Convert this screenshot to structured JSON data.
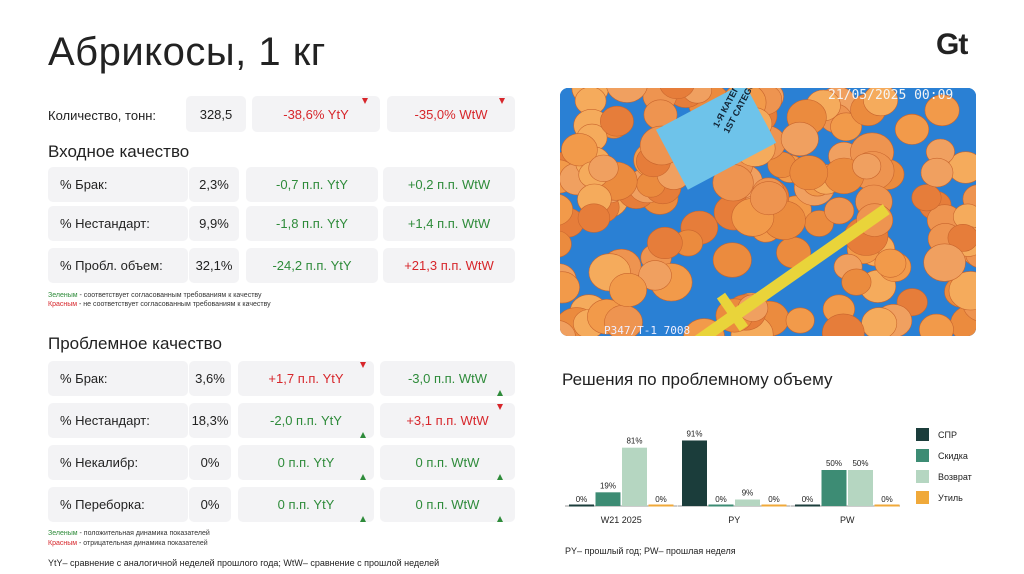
{
  "title": "Абрикосы, 1 кг",
  "logo": "Gt",
  "quantity": {
    "label": "Количество, тонн:",
    "value": "328,5",
    "yty": "-38,6% YtY",
    "wtw": "-35,0% WtW"
  },
  "incoming": {
    "title": "Входное качество",
    "rows": [
      {
        "label": "% Брак:",
        "value": "2,3%",
        "yty": "-0,7 п.п. YtY",
        "wtw": "+0,2 п.п. WtW"
      },
      {
        "label": "% Нестандарт:",
        "value": "9,9%",
        "yty": "-1,8 п.п. YtY",
        "wtw": "+1,4 п.п. WtW"
      },
      {
        "label": "% Пробл. объем:",
        "value": "32,1%",
        "yty": "-24,2 п.п. YtY",
        "wtw": "+21,3 п.п. WtW"
      }
    ],
    "note_green_word": "Зеленым",
    "note_green_text": " - соответствует согласованным требованиям к качеству",
    "note_red_word": "Красным",
    "note_red_text": " - не соответствует согласованным требованиям к качеству"
  },
  "problem": {
    "title": "Проблемное качество",
    "rows": [
      {
        "label": "% Брак:",
        "value": "3,6%",
        "yty": "+1,7 п.п. YtY",
        "wtw": "-3,0 п.п. WtW"
      },
      {
        "label": "% Нестандарт:",
        "value": "18,3%",
        "yty": "-2,0 п.п. YtY",
        "wtw": "+3,1 п.п. WtW"
      },
      {
        "label": "% Некалибр:",
        "value": "0%",
        "yty": "0 п.п. YtY",
        "wtw": "0 п.п. WtW"
      },
      {
        "label": "% Переборка:",
        "value": "0%",
        "yty": "0 п.п. YtY",
        "wtw": "0 п.п. WtW"
      }
    ],
    "note_green_word": "Зеленым",
    "note_green_text": " - положительная динамика показателей",
    "note_red_word": "Красным",
    "note_red_text": " - отрицательная динамика показателей"
  },
  "footnote": "YtY– сравнение с аналогичной неделей прошлого года; WtW– сравнение с прошлой неделей",
  "photo": {
    "timestamp": "21/05/2025  00:09",
    "tag_line1": "1-Я КАТЕГОРИЯ",
    "tag_line2": "1ST CATEGORY",
    "bottom_text": "P347/T-1    7008"
  },
  "colors": {
    "tile": "#f3f3f5",
    "green": "#2e8b3a",
    "red": "#d7262b",
    "spr": "#1b3d3b",
    "discount": "#3d8c74",
    "return": "#b5d6c1",
    "util": "#f0a93a"
  },
  "chart_data": {
    "type": "bar",
    "title": "Решения по проблемному объему",
    "categories": [
      "W21 2025",
      "PY",
      "PW"
    ],
    "series": [
      {
        "name": "СПР",
        "values": [
          0,
          91,
          0
        ]
      },
      {
        "name": "Скидка",
        "values": [
          19,
          0,
          50
        ]
      },
      {
        "name": "Возврат",
        "values": [
          81,
          9,
          50
        ]
      },
      {
        "name": "Утиль",
        "values": [
          0,
          0,
          0
        ]
      }
    ],
    "value_suffix": "%",
    "ylim": [
      0,
      100
    ],
    "legend": "right",
    "caption": "PY– прошлый год;  PW– прошлая неделя"
  }
}
